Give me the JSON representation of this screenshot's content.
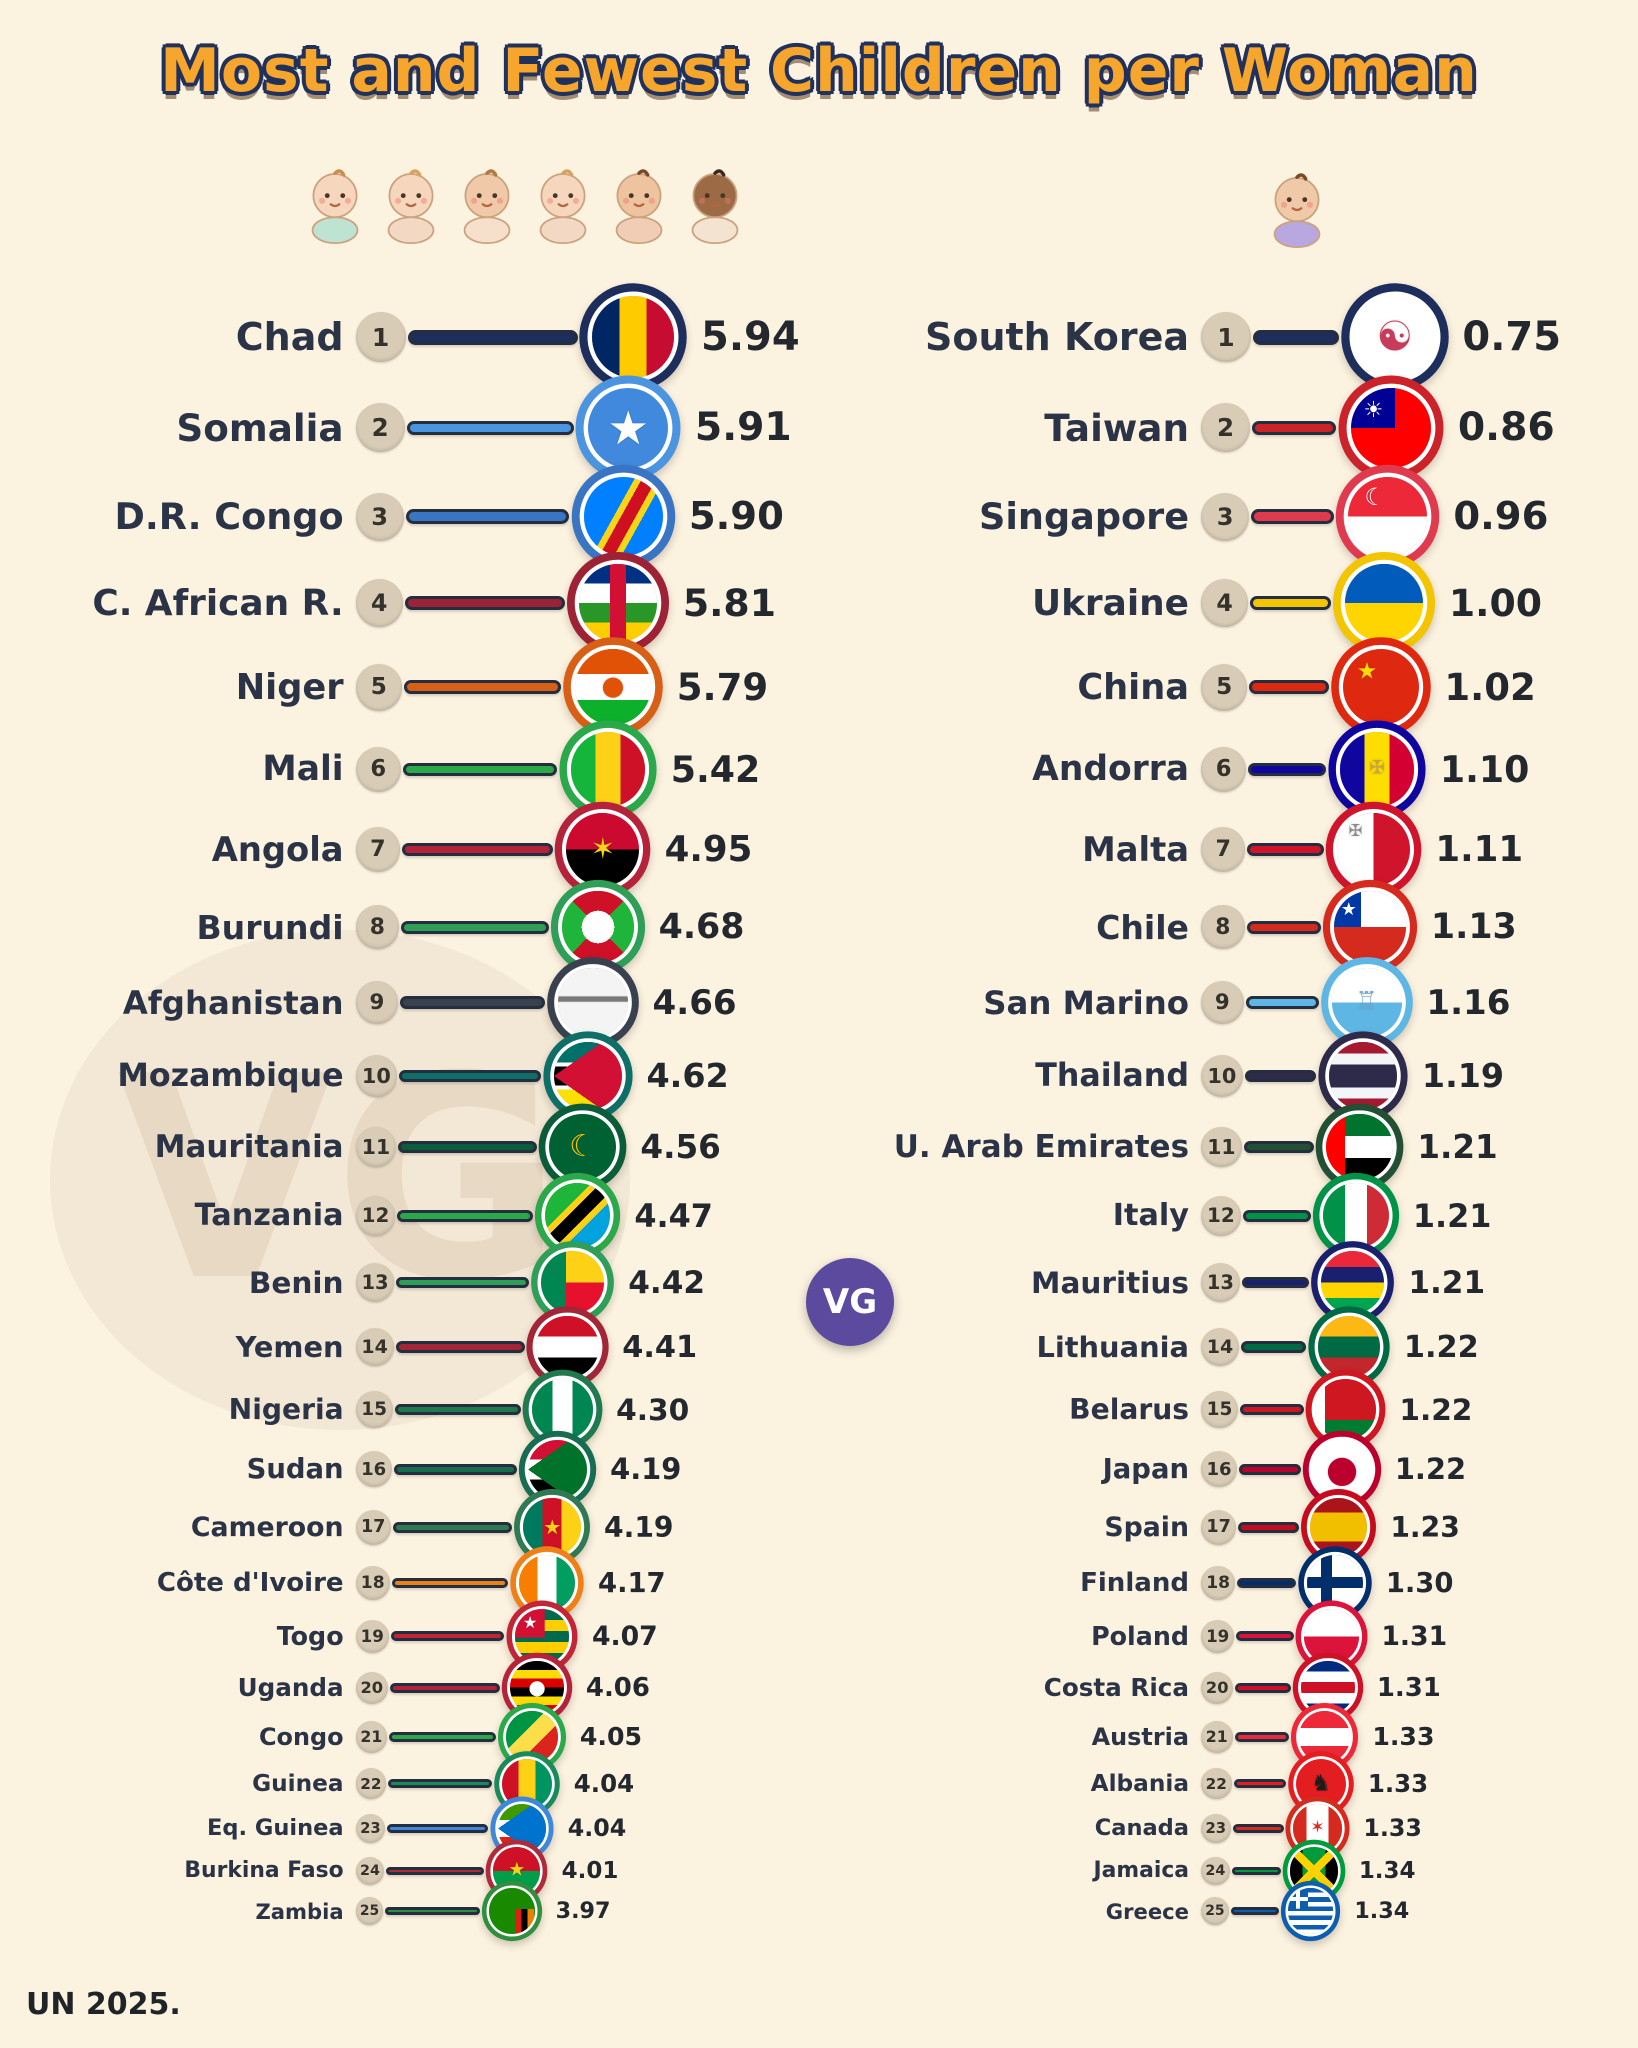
{
  "title": "Most and Fewest Children per Woman",
  "footer": "UN 2025.",
  "watermark": "VG",
  "colors": {
    "bg": "#fcf2e0",
    "title": "#f6a52d",
    "title_outline": "#20315c",
    "badge": "#d9ccb6",
    "name": "#2a3446",
    "value": "#23282e",
    "vg": "#5b4a9e"
  },
  "babies": {
    "most": [
      {
        "skin": "#f6d7bd",
        "outfit": "#bfe3d2",
        "hair": "#c98d4e"
      },
      {
        "skin": "#f6d7bd",
        "outfit": "#f3d9c4",
        "hair": "#d8a35c"
      },
      {
        "skin": "#f0c9a8",
        "outfit": "#f6e0cb",
        "hair": "#b07a42"
      },
      {
        "skin": "#f6d7bd",
        "outfit": "#f3d9c4",
        "hair": "#d8a35c"
      },
      {
        "skin": "#eec39f",
        "outfit": "#f0cdb4",
        "hair": "#7a4a26"
      },
      {
        "skin": "#9c6a44",
        "outfit": "#f3e3d0",
        "hair": "#3c2a1a"
      }
    ],
    "fewest": [
      {
        "skin": "#f0c9a8",
        "outfit": "#b9a7e0",
        "hair": "#7a4a26"
      }
    ]
  },
  "chart_data": {
    "type": "bar",
    "title": "Most and Fewest Children per Woman",
    "source": "UN 2025.",
    "unit": "children per woman",
    "groups": [
      {
        "name": "most",
        "items": [
          {
            "rank": 1,
            "country": "Chad",
            "value": "5.94",
            "bar": "#1d2d5c",
            "flag": "linear-gradient(90deg,#002664 33.4%,#fecb00 33.4% 66.7%,#c60c30 66.7%)"
          },
          {
            "rank": 2,
            "country": "Somalia",
            "value": "5.91",
            "bar": "#4b94e0",
            "flag": "#4189dd",
            "emblem": "★",
            "emblem_color": "#ffffff",
            "emblem_scale": 1.15
          },
          {
            "rank": 3,
            "country": "D.R. Congo",
            "value": "5.90",
            "bar": "#3a75c4",
            "flag": "linear-gradient(119deg,#007fff 0 42%,#f7d618 42% 48%,#ce1021 48% 60%,#f7d618 60% 66%,#007fff 66%)"
          },
          {
            "rank": 4,
            "country": "C. African R.",
            "value": "5.81",
            "bar": "#9e2235",
            "flag": "linear-gradient(90deg,rgba(0,0,0,0) 40%,#d21034 40% 60%,rgba(0,0,0,0) 60%), linear-gradient(180deg,#003082 25%,#ffffff 25% 50%,#289728 50% 75%,#ffce00 75%)"
          },
          {
            "rank": 5,
            "country": "Niger",
            "value": "5.79",
            "bar": "#d85f16",
            "flag": "linear-gradient(180deg,#e05206 33%,#ffffff 33% 67%,#0db02b 67%)",
            "emblem": "●",
            "emblem_color": "#e05206",
            "emblem_scale": 0.7
          },
          {
            "rank": 6,
            "country": "Mali",
            "value": "5.42",
            "bar": "#2aa84a",
            "flag": "linear-gradient(90deg,#14b53a 33.4%,#fcd116 33.4% 66.7%,#ce1126 66.7%)"
          },
          {
            "rank": 7,
            "country": "Angola",
            "value": "4.95",
            "bar": "#b5233a",
            "flag": "linear-gradient(180deg,#cc092f 50%,#000000 50%)",
            "emblem": "✶",
            "emblem_color": "#f9d616",
            "emblem_scale": 0.8
          },
          {
            "rank": 8,
            "country": "Burundi",
            "value": "4.68",
            "bar": "#2f9e57",
            "flag": "radial-gradient(circle at 50% 50%, #ffffff 0 32%, rgba(0,0,0,0) 32%), conic-gradient(from -45deg at 50% 50%, #ce1126 0 90deg, #1eb53a 90deg 180deg, #ce1126 180deg 270deg, #1eb53a 270deg 360deg)"
          },
          {
            "rank": 9,
            "country": "Afghanistan",
            "value": "4.66",
            "bar": "#39414f",
            "flag": "linear-gradient(180deg,rgba(0,0,0,0) 40%,rgba(80,80,80,0.75) 42%,rgba(80,80,80,0.75) 48%,rgba(0,0,0,0) 50%), linear-gradient(#f4f4f4,#f4f4f4)"
          },
          {
            "rank": 10,
            "country": "Mozambique",
            "value": "4.62",
            "bar": "#0e6f68",
            "flag": "conic-gradient(from 55deg at 0% 50%, #d21034 0 70deg, rgba(0,0,0,0) 70deg), linear-gradient(180deg,#007168 30%,#ffffff 30% 36%,#000000 36% 64%,#ffffff 64% 70%,#fce100 70%)"
          },
          {
            "rank": 11,
            "country": "Mauritania",
            "value": "4.56",
            "bar": "#0b5c38",
            "flag": "#006233",
            "emblem": "☾",
            "emblem_color": "#ffc400",
            "emblem_scale": 0.9
          },
          {
            "rank": 12,
            "country": "Tanzania",
            "value": "4.47",
            "bar": "#2aa84a",
            "flag": "linear-gradient(135deg,#1eb53a 36%,#fcd116 36% 43%,#000000 43% 57%,#fcd116 57% 64%,#00a3dd 64%)"
          },
          {
            "rank": 13,
            "country": "Benin",
            "value": "4.42",
            "bar": "#2f9e57",
            "flag": "linear-gradient(90deg,#008751 40%,rgba(0,0,0,0) 40%), linear-gradient(180deg,#fcd116 50%,#e8112d 50%)"
          },
          {
            "rank": 14,
            "country": "Yemen",
            "value": "4.41",
            "bar": "#a32638",
            "flag": "linear-gradient(180deg,#ce1126 33%,#ffffff 33% 67%,#000000 67%)"
          },
          {
            "rank": 15,
            "country": "Nigeria",
            "value": "4.30",
            "bar": "#1f7a4d",
            "flag": "linear-gradient(90deg,#008751 33.4%,#ffffff 33.4% 66.7%,#008751 66.7%)"
          },
          {
            "rank": 16,
            "country": "Sudan",
            "value": "4.19",
            "bar": "#166d52",
            "flag": "conic-gradient(from 55deg at 0% 50%, #007229 0 70deg, rgba(0,0,0,0) 70deg), linear-gradient(180deg,#d21034 33%,#ffffff 33% 67%,#000000 67%)"
          },
          {
            "rank": 17,
            "country": "Cameroon",
            "value": "4.19",
            "bar": "#2f7a52",
            "flag": "linear-gradient(90deg,#007a5e 33.4%,#ce1126 33.4% 66.7%,#fcd116 66.7%)",
            "emblem": "★",
            "emblem_color": "#fcd116",
            "emblem_scale": 0.7
          },
          {
            "rank": 18,
            "country": "Côte d'Ivoire",
            "value": "4.17",
            "bar": "#ef8018",
            "flag": "linear-gradient(90deg,#f77f00 33.4%,#ffffff 33.4% 66.7%,#009e60 66.7%)"
          },
          {
            "rank": 19,
            "country": "Togo",
            "value": "4.07",
            "bar": "#c22636",
            "flag": "linear-gradient(#d21034,#d21034) 0 0/55% 52% no-repeat, repeating-linear-gradient(180deg,#006a4e 0 20%,#ffce00 20% 40%)",
            "emblem": "★",
            "emblem_color": "#ffffff",
            "emblem_scale": 0.6,
            "emblem_pos": "28% 26%"
          },
          {
            "rank": 20,
            "country": "Uganda",
            "value": "4.06",
            "bar": "#b5233a",
            "flag": "repeating-linear-gradient(180deg,#000000 0 16.7%,#fcdc04 16.7% 33.3%,#d90000 33.3% 50%)",
            "emblem": "●",
            "emblem_color": "#ffffff",
            "emblem_scale": 0.75
          },
          {
            "rank": 21,
            "country": "Congo",
            "value": "4.05",
            "bar": "#2aa84a",
            "flag": "linear-gradient(135deg,#009543 38%,#fbde4a 38% 62%,#dc241f 62%)"
          },
          {
            "rank": 22,
            "country": "Guinea",
            "value": "4.04",
            "bar": "#1b8a5a",
            "flag": "linear-gradient(90deg,#ce1126 33.4%,#fcd116 33.4% 66.7%,#009460 66.7%)"
          },
          {
            "rank": 23,
            "country": "Eq. Guinea",
            "value": "4.04",
            "bar": "#3f87d8",
            "flag": "conic-gradient(from 55deg at 0% 50%, #0073ce 0 70deg, rgba(0,0,0,0) 70deg), linear-gradient(180deg,#3e9a00 33%,#ffffff 33% 67%,#e32118 67%)"
          },
          {
            "rank": 24,
            "country": "Burkina Faso",
            "value": "4.01",
            "bar": "#b02a3a",
            "flag": "linear-gradient(180deg,#ce1126 50%,#009e49 50%)",
            "emblem": "★",
            "emblem_color": "#fcd116",
            "emblem_scale": 0.8
          },
          {
            "rank": 25,
            "country": "Zambia",
            "value": "3.97",
            "bar": "#2f8f3f",
            "flag": "linear-gradient(90deg,#de2010 0 33%,#000000 33% 66%,#ef7d00 66%) 100% 100%/42% 55% no-repeat, linear-gradient(#198a00,#198a00)"
          }
        ]
      },
      {
        "name": "fewest",
        "items": [
          {
            "rank": 1,
            "country": "South Korea",
            "value": "0.75",
            "bar": "#1d2d5c",
            "flag": "#ffffff",
            "emblem": "☯",
            "emblem_color": "#c73b5b",
            "emblem_scale": 1.0
          },
          {
            "rank": 2,
            "country": "Taiwan",
            "value": "0.86",
            "bar": "#cc2229",
            "flag": "linear-gradient(#000095,#000095) 0 0/55% 50% no-repeat, linear-gradient(#fe0000,#fe0000)",
            "emblem": "☀",
            "emblem_color": "#ffffff",
            "emblem_scale": 0.55,
            "emblem_pos": "28% 28%"
          },
          {
            "rank": 3,
            "country": "Singapore",
            "value": "0.96",
            "bar": "#e03a4e",
            "flag": "linear-gradient(180deg,#ed2939 50%,#ffffff 50%)",
            "emblem": "☾",
            "emblem_color": "#ffffff",
            "emblem_scale": 0.6,
            "emblem_pos": "34% 26%"
          },
          {
            "rank": 4,
            "country": "Ukraine",
            "value": "1.00",
            "bar": "#f2c500",
            "flag": "linear-gradient(180deg,#005bbb 50%,#ffd500 50%)"
          },
          {
            "rank": 5,
            "country": "China",
            "value": "1.02",
            "bar": "#de2910",
            "flag": "#de2910",
            "emblem": "★",
            "emblem_color": "#fcdc04",
            "emblem_scale": 0.6,
            "emblem_pos": "32% 30%"
          },
          {
            "rank": 6,
            "country": "Andorra",
            "value": "1.10",
            "bar": "#10069f",
            "flag": "linear-gradient(90deg,#10069f 33%,#fedd00 33% 67%,#d50032 67%)",
            "emblem": "✠",
            "emblem_color": "#c8a24b",
            "emblem_scale": 0.5
          },
          {
            "rank": 7,
            "country": "Malta",
            "value": "1.11",
            "bar": "#cf142b",
            "flag": "linear-gradient(90deg,#ffffff 50%,#cf142b 50%)",
            "emblem": "✠",
            "emblem_color": "#8c8c8c",
            "emblem_scale": 0.45,
            "emblem_pos": "25% 25%"
          },
          {
            "rank": 8,
            "country": "Chile",
            "value": "1.13",
            "bar": "#d52b1e",
            "flag": "linear-gradient(#0039a6,#0039a6) 0 0/38% 50% no-repeat, linear-gradient(180deg,#ffffff 50%,#d52b1e 50%)",
            "emblem": "★",
            "emblem_color": "#ffffff",
            "emblem_scale": 0.5,
            "emblem_pos": "20% 26%"
          },
          {
            "rank": 9,
            "country": "San Marino",
            "value": "1.16",
            "bar": "#5eb6e4",
            "flag": "linear-gradient(180deg,#ffffff 50%,#5eb6e4 50%)",
            "emblem": "♖",
            "emblem_color": "#75a8c9",
            "emblem_scale": 0.7,
            "emblem_pos": "50% 48%"
          },
          {
            "rank": 10,
            "country": "Thailand",
            "value": "1.19",
            "bar": "#2d2a4a",
            "flag": "linear-gradient(180deg,#a51931 16.7%,#f4f5f8 16.7% 33.3%,#2d2a4a 33.3% 66.7%,#f4f5f8 66.7% 83.3%,#a51931 83.3%)"
          },
          {
            "rank": 11,
            "country": "U. Arab Emirates",
            "value": "1.21",
            "bar": "#234f32",
            "flag": "linear-gradient(90deg,#ff0000 28%,rgba(0,0,0,0) 28%), linear-gradient(180deg,#00732f 33%,#ffffff 33% 67%,#000000 67%)"
          },
          {
            "rank": 12,
            "country": "Italy",
            "value": "1.21",
            "bar": "#009246",
            "flag": "linear-gradient(90deg,#009246 33.4%,#ffffff 33.4% 66.7%,#ce2b37 66.7%)"
          },
          {
            "rank": 13,
            "country": "Mauritius",
            "value": "1.21",
            "bar": "#1a206d",
            "flag": "linear-gradient(180deg,#ea2839 25%,#1a206d 25% 50%,#ffd500 50% 75%,#00a551 75%)"
          },
          {
            "rank": 14,
            "country": "Lithuania",
            "value": "1.22",
            "bar": "#006a44",
            "flag": "linear-gradient(180deg,#fdb913 33%,#006a44 33% 67%,#c1272d 67%)"
          },
          {
            "rank": 15,
            "country": "Belarus",
            "value": "1.22",
            "bar": "#ce1720",
            "flag": "linear-gradient(90deg,#ffffff 0 16%,rgba(0,0,0,0) 16%), linear-gradient(180deg,#ce1720 67%,#007c30 67%)"
          },
          {
            "rank": 16,
            "country": "Japan",
            "value": "1.22",
            "bar": "#bc002d",
            "flag": "#ffffff",
            "emblem": "●",
            "emblem_color": "#bc002d",
            "emblem_scale": 1.25
          },
          {
            "rank": 17,
            "country": "Spain",
            "value": "1.23",
            "bar": "#c60b1e",
            "flag": "linear-gradient(180deg,#aa151b 25%,#f1bf00 25% 75%,#aa151b 75%)"
          },
          {
            "rank": 18,
            "country": "Finland",
            "value": "1.30",
            "bar": "#002f6c",
            "flag": "linear-gradient(#002f6c,#002f6c) 0 50%/100% 20% no-repeat, linear-gradient(#002f6c,#002f6c) 32% 0/20% 100% no-repeat, linear-gradient(#ffffff,#ffffff)"
          },
          {
            "rank": 19,
            "country": "Poland",
            "value": "1.31",
            "bar": "#dc143c",
            "flag": "linear-gradient(180deg,#ffffff 50%,#dc143c 50%)"
          },
          {
            "rank": 20,
            "country": "Costa Rica",
            "value": "1.31",
            "bar": "#ce1126",
            "flag": "linear-gradient(180deg,#002b7f 20%,#ffffff 20% 40%,#ce1126 40% 60%,#ffffff 60% 80%,#002b7f 80%)"
          },
          {
            "rank": 21,
            "country": "Austria",
            "value": "1.33",
            "bar": "#ed2939",
            "flag": "linear-gradient(180deg,#ed2939 33%,#ffffff 33% 67%,#ed2939 67%)"
          },
          {
            "rank": 22,
            "country": "Albania",
            "value": "1.33",
            "bar": "#e41e20",
            "flag": "#e41e20",
            "emblem": "♞",
            "emblem_color": "#1c1c1c",
            "emblem_scale": 0.9
          },
          {
            "rank": 23,
            "country": "Canada",
            "value": "1.33",
            "bar": "#d52b1e",
            "flag": "linear-gradient(90deg,#d52b1e 28%,rgba(0,0,0,0) 28% 72%,#d52b1e 72%), linear-gradient(#ffffff,#ffffff)",
            "emblem": "✶",
            "emblem_color": "#d52b1e",
            "emblem_scale": 0.7
          },
          {
            "rank": 24,
            "country": "Jamaica",
            "value": "1.34",
            "bar": "#009b3a",
            "flag": "linear-gradient(45deg,rgba(0,0,0,0) 44%,#fed100 44% 56%,rgba(0,0,0,0) 56%), linear-gradient(135deg,rgba(0,0,0,0) 44%,#fed100 44% 56%,rgba(0,0,0,0) 56%), linear-gradient(90deg,#000000 26%,rgba(0,0,0,0) 26% 74%,#000000 74%), linear-gradient(#009b3a,#009b3a)"
          },
          {
            "rank": 25,
            "country": "Greece",
            "value": "1.34",
            "bar": "#0d5eaf",
            "flag": "linear-gradient(#ffffff,#ffffff) 20% 0/9% 45% no-repeat, linear-gradient(#ffffff,#ffffff) 0 20%/45% 9% no-repeat, linear-gradient(#0d5eaf,#0d5eaf) 0 0/45% 45% no-repeat, repeating-linear-gradient(180deg,#0d5eaf 0 10%,#ffffff 10% 20%)"
          }
        ]
      }
    ]
  }
}
